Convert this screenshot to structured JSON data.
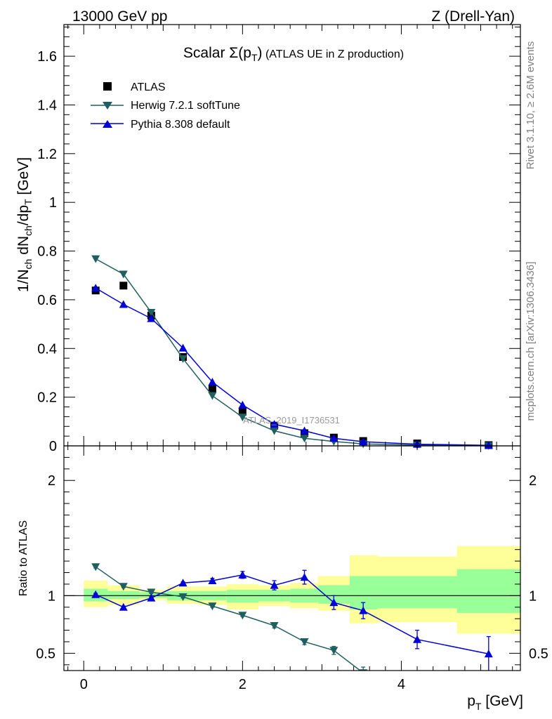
{
  "header": {
    "left": "13000 GeV pp",
    "right": "Z (Drell-Yan)"
  },
  "side_labels": {
    "rivet": "Rivet 3.1.10, ≥ 2.6M events",
    "mcplots": "mcplots.cern.ch [arXiv:1306.3436]"
  },
  "watermark": "ATLAS_2019_I1736531",
  "chart_data": [
    {
      "type": "scatter",
      "title_main": "Scalar Σ(p",
      "title_sub": "T",
      "title_close": ")",
      "title_rest": " (ATLAS UE in Z production)",
      "xlabel_main": "p",
      "xlabel_sub": "T",
      "xlabel_rest": " [GeV]",
      "ylabel_parts": {
        "a": "1/N",
        "a_sub": "ch",
        "b": " dN",
        "b_sub": "ch",
        "c": "/dp",
        "c_sub": "T",
        "d": " [GeV]"
      },
      "xlim": [
        -0.25,
        5.5
      ],
      "ylim": [
        0,
        1.73
      ],
      "yticks": [
        "0",
        "0.2",
        "0.4",
        "0.6",
        "0.8",
        "1",
        "1.2",
        "1.4",
        "1.6"
      ],
      "xticks": [
        "0",
        "2",
        "4"
      ],
      "legend_position": "top-left",
      "series": [
        {
          "name": "ATLAS",
          "color": "#000000",
          "marker": "square",
          "x": [
            0.15,
            0.5,
            0.85,
            1.25,
            1.62,
            2.0,
            2.4,
            2.78,
            3.15,
            3.52,
            4.2,
            5.1
          ],
          "y": [
            0.638,
            0.658,
            0.535,
            0.365,
            0.233,
            0.14,
            0.083,
            0.052,
            0.034,
            0.02,
            0.01,
            0.003
          ]
        },
        {
          "name": "Herwig 7.2.1 softTune",
          "color": "#1f5f5f",
          "marker": "triangle-down",
          "x": [
            0.15,
            0.5,
            0.85,
            1.25,
            1.62,
            2.0,
            2.4,
            2.78,
            3.15,
            3.52,
            4.2,
            5.1
          ],
          "y": [
            0.768,
            0.705,
            0.548,
            0.358,
            0.206,
            0.118,
            0.062,
            0.031,
            0.018,
            0.008,
            0.003,
            0.0005
          ]
        },
        {
          "name": "Pythia 8.308 default",
          "color": "#0000d8",
          "marker": "triangle-up",
          "x": [
            0.15,
            0.5,
            0.85,
            1.25,
            1.62,
            2.0,
            2.4,
            2.78,
            3.15,
            3.52,
            4.2,
            5.1
          ],
          "y": [
            0.648,
            0.581,
            0.523,
            0.402,
            0.262,
            0.168,
            0.089,
            0.062,
            0.031,
            0.017,
            0.007,
            0.002
          ]
        }
      ]
    },
    {
      "type": "scatter",
      "ylabel": "Ratio to ATLAS",
      "ylim": [
        0.35,
        2.3
      ],
      "yticks": [
        "0.5",
        "1",
        "2"
      ],
      "xlim": [
        -0.25,
        5.5
      ],
      "xticks": [
        "0",
        "2",
        "4"
      ],
      "reference_line": 1,
      "bands": {
        "edges": [
          0,
          0.3,
          0.7,
          1.05,
          1.45,
          1.8,
          2.2,
          2.6,
          2.95,
          3.35,
          3.7,
          4.7,
          5.5
        ],
        "yellow_lo": [
          0.9,
          0.92,
          0.96,
          0.93,
          0.92,
          0.88,
          0.91,
          0.89,
          0.87,
          0.76,
          0.77,
          0.67
        ],
        "yellow_hi": [
          1.13,
          1.09,
          1.05,
          1.08,
          1.08,
          1.1,
          1.09,
          1.11,
          1.17,
          1.35,
          1.34,
          1.43
        ],
        "green_lo": [
          0.95,
          0.97,
          0.98,
          0.96,
          0.96,
          0.94,
          0.95,
          0.94,
          0.93,
          0.88,
          0.89,
          0.85
        ],
        "green_hi": [
          1.06,
          1.04,
          1.03,
          1.04,
          1.04,
          1.05,
          1.05,
          1.06,
          1.09,
          1.17,
          1.17,
          1.23
        ]
      },
      "series": [
        {
          "name": "Herwig 7.2.1 softTune",
          "color": "#1f5f5f",
          "marker": "triangle-down",
          "x": [
            0.15,
            0.5,
            0.85,
            1.25,
            1.62,
            2.0,
            2.4,
            2.78,
            3.15,
            3.52
          ],
          "y": [
            1.25,
            1.08,
            1.03,
            0.99,
            0.91,
            0.83,
            0.74,
            0.6,
            0.525,
            0.33
          ],
          "err": [
            0.01,
            0.01,
            0.01,
            0.01,
            0.01,
            0.01,
            0.02,
            0.025,
            0.035,
            0.05
          ]
        },
        {
          "name": "Pythia 8.308 default",
          "color": "#0000d8",
          "marker": "triangle-up",
          "x": [
            0.15,
            0.5,
            0.85,
            1.25,
            1.62,
            2.0,
            2.4,
            2.78,
            3.15,
            3.52,
            4.2,
            5.1
          ],
          "y": [
            1.01,
            0.9,
            0.98,
            1.11,
            1.13,
            1.18,
            1.09,
            1.16,
            0.94,
            0.87,
            0.62,
            0.495
          ],
          "err": [
            0.01,
            0.01,
            0.01,
            0.01,
            0.02,
            0.03,
            0.04,
            0.06,
            0.06,
            0.07,
            0.08,
            0.15
          ]
        }
      ]
    }
  ]
}
